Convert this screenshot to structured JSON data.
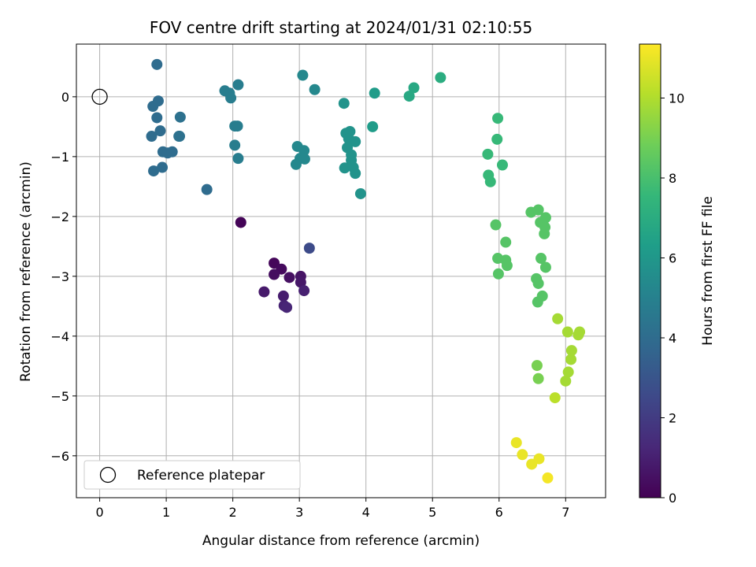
{
  "chart_data": {
    "type": "scatter",
    "title": "FOV centre drift starting at 2024/01/31 02:10:55",
    "xlabel": "Angular distance from reference (arcmin)",
    "ylabel": "Rotation from reference (arcmin)",
    "xlim": [
      -0.35,
      7.6
    ],
    "ylim": [
      -6.7,
      0.88
    ],
    "xticks": [
      0,
      1,
      2,
      3,
      4,
      5,
      6,
      7
    ],
    "yticks": [
      0,
      -1,
      -2,
      -3,
      -4,
      -5,
      -6
    ],
    "grid": true,
    "legend": {
      "placement": "lower-left",
      "entries": [
        "Reference platepar"
      ]
    },
    "reference_point": {
      "x": 0,
      "y": 0,
      "name": "Reference platepar"
    },
    "colorbar": {
      "label": "Hours from first FF file",
      "colormap": "viridis",
      "range": [
        0,
        11.35
      ],
      "ticks": [
        0,
        2,
        4,
        6,
        8,
        10
      ]
    },
    "points": [
      {
        "x": 2.12,
        "y": -2.1,
        "h": 0.1
      },
      {
        "x": 2.62,
        "y": -2.78,
        "h": 0.2
      },
      {
        "x": 2.73,
        "y": -2.88,
        "h": 0.3
      },
      {
        "x": 2.62,
        "y": -2.97,
        "h": 0.4
      },
      {
        "x": 2.85,
        "y": -3.02,
        "h": 0.5
      },
      {
        "x": 3.02,
        "y": -3.0,
        "h": 0.6
      },
      {
        "x": 3.02,
        "y": -3.1,
        "h": 0.7
      },
      {
        "x": 2.47,
        "y": -3.26,
        "h": 0.8
      },
      {
        "x": 2.76,
        "y": -3.33,
        "h": 0.9
      },
      {
        "x": 3.07,
        "y": -3.24,
        "h": 1.0
      },
      {
        "x": 2.77,
        "y": -3.49,
        "h": 1.1
      },
      {
        "x": 2.81,
        "y": -3.52,
        "h": 1.2
      },
      {
        "x": 3.15,
        "y": -2.53,
        "h": 2.6
      },
      {
        "x": 1.61,
        "y": -1.55,
        "h": 4.0
      },
      {
        "x": 0.86,
        "y": 0.54,
        "h": 4.0
      },
      {
        "x": 0.8,
        "y": -0.16,
        "h": 4.0
      },
      {
        "x": 0.88,
        "y": -0.07,
        "h": 4.0
      },
      {
        "x": 0.86,
        "y": -0.35,
        "h": 4.0
      },
      {
        "x": 0.91,
        "y": -0.57,
        "h": 4.0
      },
      {
        "x": 0.78,
        "y": -0.66,
        "h": 4.0
      },
      {
        "x": 0.95,
        "y": -0.92,
        "h": 4.0
      },
      {
        "x": 1.02,
        "y": -0.94,
        "h": 4.0
      },
      {
        "x": 1.09,
        "y": -0.92,
        "h": 4.0
      },
      {
        "x": 0.81,
        "y": -1.24,
        "h": 4.0
      },
      {
        "x": 0.94,
        "y": -1.18,
        "h": 4.0
      },
      {
        "x": 1.21,
        "y": -0.34,
        "h": 4.2
      },
      {
        "x": 1.19,
        "y": -0.66,
        "h": 4.2
      },
      {
        "x": 1.2,
        "y": -0.66,
        "h": 4.2
      },
      {
        "x": 1.88,
        "y": 0.1,
        "h": 4.8
      },
      {
        "x": 1.95,
        "y": 0.06,
        "h": 4.8
      },
      {
        "x": 1.97,
        "y": -0.02,
        "h": 4.8
      },
      {
        "x": 2.08,
        "y": 0.2,
        "h": 4.8
      },
      {
        "x": 2.03,
        "y": -0.49,
        "h": 4.8
      },
      {
        "x": 2.07,
        "y": -0.49,
        "h": 4.8
      },
      {
        "x": 2.03,
        "y": -0.81,
        "h": 4.8
      },
      {
        "x": 2.08,
        "y": -1.03,
        "h": 4.8
      },
      {
        "x": 3.05,
        "y": 0.36,
        "h": 5.3
      },
      {
        "x": 3.23,
        "y": 0.12,
        "h": 5.3
      },
      {
        "x": 2.97,
        "y": -0.83,
        "h": 5.3
      },
      {
        "x": 3.07,
        "y": -0.9,
        "h": 5.3
      },
      {
        "x": 3.01,
        "y": -1.03,
        "h": 5.3
      },
      {
        "x": 3.08,
        "y": -1.04,
        "h": 5.3
      },
      {
        "x": 2.95,
        "y": -1.13,
        "h": 5.3
      },
      {
        "x": 3.67,
        "y": -0.11,
        "h": 5.8
      },
      {
        "x": 3.7,
        "y": -0.61,
        "h": 5.8
      },
      {
        "x": 3.76,
        "y": -0.58,
        "h": 5.8
      },
      {
        "x": 3.74,
        "y": -0.7,
        "h": 5.8
      },
      {
        "x": 3.84,
        "y": -0.75,
        "h": 5.8
      },
      {
        "x": 3.72,
        "y": -0.85,
        "h": 5.8
      },
      {
        "x": 3.78,
        "y": -0.97,
        "h": 5.8
      },
      {
        "x": 3.78,
        "y": -1.06,
        "h": 5.8
      },
      {
        "x": 3.68,
        "y": -1.19,
        "h": 5.8
      },
      {
        "x": 3.81,
        "y": -1.18,
        "h": 5.8
      },
      {
        "x": 3.84,
        "y": -1.28,
        "h": 5.8
      },
      {
        "x": 3.92,
        "y": -1.62,
        "h": 5.8
      },
      {
        "x": 4.13,
        "y": 0.06,
        "h": 6.2
      },
      {
        "x": 4.1,
        "y": -0.5,
        "h": 6.2
      },
      {
        "x": 4.65,
        "y": 0.01,
        "h": 6.8
      },
      {
        "x": 4.72,
        "y": 0.15,
        "h": 6.8
      },
      {
        "x": 5.12,
        "y": 0.32,
        "h": 7.0
      },
      {
        "x": 5.98,
        "y": -0.36,
        "h": 7.6
      },
      {
        "x": 5.97,
        "y": -0.71,
        "h": 7.6
      },
      {
        "x": 5.83,
        "y": -0.96,
        "h": 7.6
      },
      {
        "x": 6.05,
        "y": -1.14,
        "h": 7.6
      },
      {
        "x": 5.84,
        "y": -1.31,
        "h": 7.6
      },
      {
        "x": 5.87,
        "y": -1.42,
        "h": 7.6
      },
      {
        "x": 6.48,
        "y": -1.93,
        "h": 8.3
      },
      {
        "x": 6.59,
        "y": -1.89,
        "h": 8.3
      },
      {
        "x": 6.7,
        "y": -2.02,
        "h": 8.3
      },
      {
        "x": 6.62,
        "y": -2.1,
        "h": 8.3
      },
      {
        "x": 6.69,
        "y": -2.18,
        "h": 8.3
      },
      {
        "x": 6.68,
        "y": -2.29,
        "h": 8.3
      },
      {
        "x": 5.95,
        "y": -2.14,
        "h": 8.3
      },
      {
        "x": 6.1,
        "y": -2.43,
        "h": 8.3
      },
      {
        "x": 5.98,
        "y": -2.7,
        "h": 8.3
      },
      {
        "x": 6.1,
        "y": -2.73,
        "h": 8.3
      },
      {
        "x": 6.12,
        "y": -2.82,
        "h": 8.3
      },
      {
        "x": 5.99,
        "y": -2.96,
        "h": 8.3
      },
      {
        "x": 6.63,
        "y": -2.7,
        "h": 8.3
      },
      {
        "x": 6.7,
        "y": -2.85,
        "h": 8.3
      },
      {
        "x": 6.56,
        "y": -3.04,
        "h": 8.3
      },
      {
        "x": 6.59,
        "y": -3.12,
        "h": 8.3
      },
      {
        "x": 6.65,
        "y": -3.33,
        "h": 8.3
      },
      {
        "x": 6.58,
        "y": -3.43,
        "h": 8.3
      },
      {
        "x": 6.57,
        "y": -4.49,
        "h": 9.0
      },
      {
        "x": 6.59,
        "y": -4.71,
        "h": 9.0
      },
      {
        "x": 6.88,
        "y": -3.71,
        "h": 9.8
      },
      {
        "x": 7.03,
        "y": -3.93,
        "h": 9.8
      },
      {
        "x": 7.21,
        "y": -3.93,
        "h": 9.8
      },
      {
        "x": 7.19,
        "y": -3.98,
        "h": 9.8
      },
      {
        "x": 7.09,
        "y": -4.24,
        "h": 9.8
      },
      {
        "x": 7.08,
        "y": -4.39,
        "h": 9.8
      },
      {
        "x": 7.04,
        "y": -4.6,
        "h": 9.8
      },
      {
        "x": 7.0,
        "y": -4.75,
        "h": 9.8
      },
      {
        "x": 6.84,
        "y": -5.03,
        "h": 10.2
      },
      {
        "x": 6.26,
        "y": -5.78,
        "h": 11.0
      },
      {
        "x": 6.35,
        "y": -5.98,
        "h": 11.0
      },
      {
        "x": 6.49,
        "y": -6.14,
        "h": 11.0
      },
      {
        "x": 6.6,
        "y": -6.05,
        "h": 11.0
      },
      {
        "x": 6.73,
        "y": -6.37,
        "h": 11.2
      }
    ]
  }
}
